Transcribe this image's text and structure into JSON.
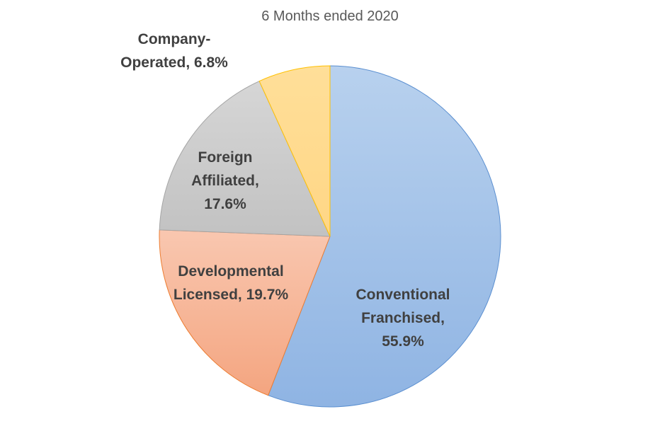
{
  "chart_data": {
    "type": "pie",
    "title": "6 Months ended 2020",
    "slices": [
      {
        "name": "Conventional Franchised",
        "value": 55.9,
        "label_lines": [
          "Conventional",
          "Franchised,",
          "55.9%"
        ],
        "color": "#9dbfe6",
        "color_light": "#b8d1ee",
        "color_dark": "#8fb4e3",
        "stroke": "#5b8fd0"
      },
      {
        "name": "Developmental Licensed",
        "value": 19.7,
        "label_lines": [
          "Developmental",
          "Licensed, 19.7%"
        ],
        "color": "#f6b59a",
        "color_light": "#f9c7b0",
        "color_dark": "#f4a580",
        "stroke": "#ed7d31"
      },
      {
        "name": "Foreign Affiliated",
        "value": 17.6,
        "label_lines": [
          "Foreign",
          "Affiliated,",
          "17.6%"
        ],
        "color": "#cbcbcb",
        "color_light": "#d6d6d6",
        "color_dark": "#c2c2c2",
        "stroke": "#a5a5a5"
      },
      {
        "name": "Company-Operated",
        "value": 6.8,
        "label_lines": [
          "Company-",
          "Operated, 6.8%"
        ],
        "color": "#ffd98c",
        "color_light": "#ffdf99",
        "color_dark": "#ffd685",
        "stroke": "#ffc000"
      }
    ],
    "start_angle_deg": 0,
    "direction": "clockwise",
    "legend": "none"
  }
}
